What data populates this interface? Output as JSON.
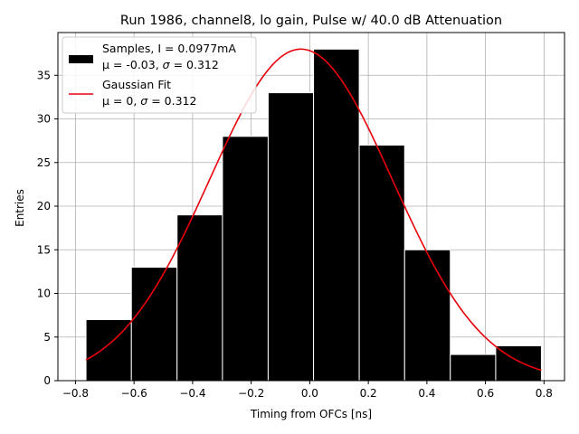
{
  "chart_data": {
    "type": "bar",
    "title": "Run 1986, channel8, lo gain, Pulse w/ 40.0 dB Attenuation",
    "xlabel": "Timing from OFCs [ns]",
    "ylabel": "Entries",
    "xlim": [
      -0.86,
      0.87
    ],
    "ylim": [
      0,
      39.9
    ],
    "xticks": [
      -0.8,
      -0.6,
      -0.4,
      -0.2,
      0.0,
      0.2,
      0.4,
      0.6,
      0.8
    ],
    "xtick_labels": [
      "−0.8",
      "−0.6",
      "−0.4",
      "−0.2",
      "0.0",
      "0.2",
      "0.4",
      "0.6",
      "0.8"
    ],
    "yticks": [
      0,
      5,
      10,
      15,
      20,
      25,
      30,
      35
    ],
    "ytick_labels": [
      "0",
      "5",
      "10",
      "15",
      "20",
      "25",
      "30",
      "35"
    ],
    "grid": true,
    "legend_position": "top-left",
    "histogram": {
      "bin_edges": [
        -0.764,
        -0.609,
        -0.453,
        -0.298,
        -0.142,
        0.013,
        0.169,
        0.324,
        0.48,
        0.635,
        0.791
      ],
      "counts": [
        7,
        13,
        19,
        28,
        33,
        38,
        27,
        15,
        3,
        4
      ],
      "color": "#000000",
      "edgecolor": "#ffffff",
      "legend_line1": "Samples, I = 0.0977mA",
      "legend_line2_prefix": "μ = -0.03, ",
      "legend_line2_sigma": "σ",
      "legend_line2_suffix": " = 0.312"
    },
    "fit": {
      "amplitude": 38.0,
      "mean": -0.03,
      "sigma": 0.312,
      "x_range": [
        -0.764,
        0.791
      ],
      "color": "#e8000b",
      "legend_line1": "Gaussian Fit",
      "legend_line2_prefix": "μ = 0, ",
      "legend_line2_sigma": "σ",
      "legend_line2_suffix": " = 0.312"
    }
  }
}
